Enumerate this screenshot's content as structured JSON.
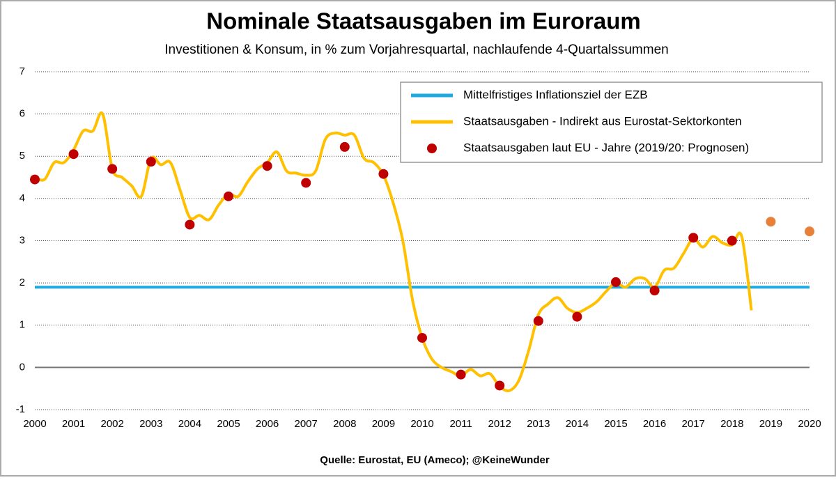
{
  "chart_data": {
    "type": "line",
    "title": "Nominale Staatsausgaben im Euroraum",
    "subtitle": "Investitionen & Konsum, in % zum Vorjahresquartal, nachlaufende 4-Quartalssummen",
    "source": "Quelle: Eurostat, EU (Ameco); @KeineWunder",
    "xlim": [
      2000,
      2020
    ],
    "xticks": [
      2000,
      2001,
      2002,
      2003,
      2004,
      2005,
      2006,
      2007,
      2008,
      2009,
      2010,
      2011,
      2012,
      2013,
      2014,
      2015,
      2016,
      2017,
      2018,
      2019,
      2020
    ],
    "ylim": [
      -1,
      7
    ],
    "yticks": [
      -1,
      0,
      1,
      2,
      3,
      4,
      5,
      6,
      7
    ],
    "grid": true,
    "series": [
      {
        "name": "Mittelfristiges Inflationsziel der EZB",
        "type": "line",
        "color": "#1ea8e0",
        "x": [
          2000,
          2020
        ],
        "values": [
          1.9,
          1.9
        ]
      },
      {
        "name": "Staatsausgaben - Indirekt aus Eurostat-Sektorkonten",
        "type": "line",
        "color": "#ffc000",
        "x": [
          2000,
          2000.25,
          2000.5,
          2000.75,
          2001,
          2001.25,
          2001.5,
          2001.75,
          2002,
          2002.25,
          2002.5,
          2002.75,
          2003,
          2003.25,
          2003.5,
          2003.75,
          2004,
          2004.25,
          2004.5,
          2004.75,
          2005,
          2005.25,
          2005.5,
          2005.75,
          2006,
          2006.25,
          2006.5,
          2006.75,
          2007,
          2007.25,
          2007.5,
          2007.75,
          2008,
          2008.25,
          2008.5,
          2008.75,
          2009,
          2009.25,
          2009.5,
          2009.75,
          2010,
          2010.25,
          2010.5,
          2010.75,
          2011,
          2011.25,
          2011.5,
          2011.75,
          2012,
          2012.25,
          2012.5,
          2012.75,
          2013,
          2013.25,
          2013.5,
          2013.75,
          2014,
          2014.25,
          2014.5,
          2014.75,
          2015,
          2015.25,
          2015.5,
          2015.75,
          2016,
          2016.25,
          2016.5,
          2016.75,
          2017,
          2017.25,
          2017.5,
          2017.75,
          2018,
          2018.25,
          2018.5
        ],
        "values": [
          4.5,
          4.45,
          4.85,
          4.85,
          5.15,
          5.6,
          5.6,
          6.0,
          4.7,
          4.5,
          4.3,
          4.05,
          4.95,
          4.8,
          4.85,
          4.2,
          3.55,
          3.6,
          3.5,
          3.85,
          4.1,
          4.05,
          4.4,
          4.7,
          4.85,
          5.1,
          4.65,
          4.6,
          4.55,
          4.65,
          5.4,
          5.55,
          5.5,
          5.5,
          4.95,
          4.85,
          4.55,
          3.9,
          3.0,
          1.6,
          0.7,
          0.2,
          0.0,
          -0.1,
          -0.2,
          -0.05,
          -0.2,
          -0.15,
          -0.45,
          -0.55,
          -0.3,
          0.4,
          1.25,
          1.5,
          1.65,
          1.4,
          1.3,
          1.4,
          1.55,
          1.8,
          2.0,
          1.9,
          2.1,
          2.1,
          1.9,
          2.3,
          2.35,
          2.7,
          3.05,
          2.85,
          3.1,
          2.95,
          2.9,
          3.1,
          1.35
        ]
      },
      {
        "name": "Staatsausgaben laut EU - Jahre (2019/20: Prognosen)",
        "type": "scatter",
        "color": "#c00000",
        "colors": [
          "#c00000",
          "#c00000",
          "#c00000",
          "#c00000",
          "#c00000",
          "#c00000",
          "#c00000",
          "#c00000",
          "#c00000",
          "#c00000",
          "#c00000",
          "#c00000",
          "#c00000",
          "#c00000",
          "#c00000",
          "#c00000",
          "#c00000",
          "#c00000",
          "#c00000",
          "#e8803a",
          "#e8803a"
        ],
        "x": [
          2000,
          2001,
          2002,
          2003,
          2004,
          2005,
          2006,
          2007,
          2008,
          2009,
          2010,
          2011,
          2012,
          2013,
          2014,
          2015,
          2016,
          2017,
          2018,
          2019,
          2020
        ],
        "values": [
          4.45,
          5.05,
          4.7,
          4.87,
          3.38,
          4.05,
          4.77,
          4.37,
          5.22,
          4.58,
          0.7,
          -0.17,
          -0.43,
          1.1,
          1.2,
          2.02,
          1.82,
          3.07,
          3.0,
          3.45,
          3.22
        ]
      }
    ]
  }
}
